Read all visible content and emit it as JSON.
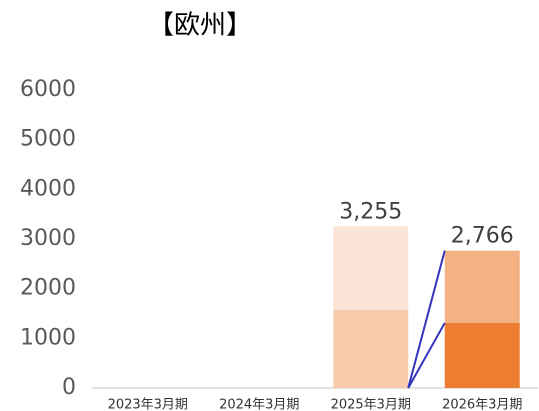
{
  "chart_data": {
    "type": "stacked_bar",
    "title": "【欧州】",
    "categories": [
      "2023年3月期",
      "2024年3月期",
      "2025年3月期",
      "2026年3月期"
    ],
    "series": [
      {
        "values": [
          null,
          null,
          1570,
          1310
        ],
        "colors": [
          null,
          null,
          "#f8cbad",
          "#ed7d31"
        ]
      },
      {
        "values": [
          null,
          null,
          1685,
          1456
        ],
        "colors": [
          null,
          null,
          "#fbe5d6",
          "#f4b183"
        ]
      }
    ],
    "totals": [
      null,
      null,
      3255,
      2766
    ],
    "total_labels": [
      null,
      null,
      "3,255",
      "2,766"
    ],
    "ylim": [
      0,
      6000
    ],
    "yticks": [
      0,
      1000,
      2000,
      3000,
      4000,
      5000,
      6000
    ],
    "grid": false,
    "connector_color": "#3333bb"
  }
}
